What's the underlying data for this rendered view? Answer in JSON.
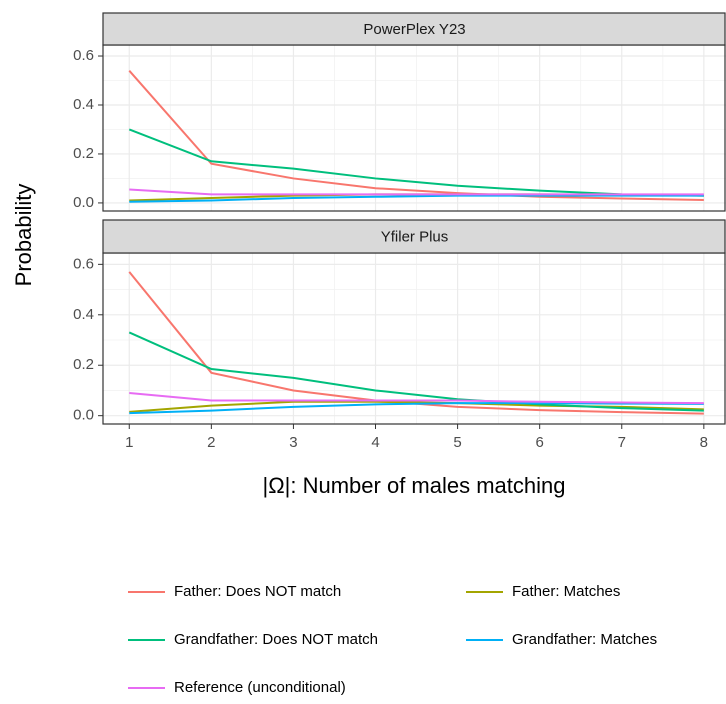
{
  "chart_data": [
    {
      "type": "line",
      "title": "PowerPlex Y23",
      "ylabel": "Probability",
      "x": [
        1,
        2,
        3,
        4,
        5,
        6,
        7,
        8
      ],
      "xlim": [
        0.68,
        8.27
      ],
      "xticks": [
        1,
        2,
        3,
        4,
        5,
        6,
        7,
        8
      ],
      "ylim": [
        -0.033,
        0.645
      ],
      "yticks": [
        {
          "value": 0,
          "label": "0.0"
        },
        {
          "value": 0.2,
          "label": "0.2"
        },
        {
          "value": 0.4,
          "label": "0.4"
        },
        {
          "value": 0.6,
          "label": "0.6"
        }
      ],
      "grid": true,
      "series": [
        {
          "name": "Father: Does NOT match",
          "color": "#F8766D",
          "values": [
            0.54,
            0.16,
            0.1,
            0.06,
            0.04,
            0.025,
            0.018,
            0.012
          ]
        },
        {
          "name": "Father: Matches",
          "color": "#A3A500",
          "values": [
            0.01,
            0.02,
            0.03,
            0.035,
            0.035,
            0.035,
            0.033,
            0.03
          ]
        },
        {
          "name": "Grandfather: Does NOT match",
          "color": "#00BF7D",
          "values": [
            0.3,
            0.17,
            0.14,
            0.1,
            0.07,
            0.05,
            0.035,
            0.03
          ]
        },
        {
          "name": "Grandfather: Matches",
          "color": "#00B0F6",
          "values": [
            0.005,
            0.01,
            0.02,
            0.025,
            0.03,
            0.03,
            0.03,
            0.03
          ]
        },
        {
          "name": "Reference (unconditional)",
          "color": "#E76BF3",
          "values": [
            0.055,
            0.035,
            0.035,
            0.035,
            0.035,
            0.035,
            0.035,
            0.035
          ]
        }
      ]
    },
    {
      "type": "line",
      "title": "Yfiler Plus",
      "xlabel": "|Ω|: Number of males matching",
      "x": [
        1,
        2,
        3,
        4,
        5,
        6,
        7,
        8
      ],
      "xlim": [
        0.68,
        8.27
      ],
      "xticks": [
        1,
        2,
        3,
        4,
        5,
        6,
        7,
        8
      ],
      "ylim": [
        -0.033,
        0.645
      ],
      "yticks": [
        {
          "value": 0,
          "label": "0.0"
        },
        {
          "value": 0.2,
          "label": "0.2"
        },
        {
          "value": 0.4,
          "label": "0.4"
        },
        {
          "value": 0.6,
          "label": "0.6"
        }
      ],
      "grid": true,
      "series": [
        {
          "name": "Father: Does NOT match",
          "color": "#F8766D",
          "values": [
            0.57,
            0.17,
            0.1,
            0.06,
            0.035,
            0.022,
            0.014,
            0.008
          ]
        },
        {
          "name": "Father: Matches",
          "color": "#A3A500",
          "values": [
            0.015,
            0.04,
            0.055,
            0.055,
            0.05,
            0.04,
            0.035,
            0.025
          ]
        },
        {
          "name": "Grandfather: Does NOT match",
          "color": "#00BF7D",
          "values": [
            0.33,
            0.185,
            0.15,
            0.1,
            0.065,
            0.045,
            0.03,
            0.02
          ]
        },
        {
          "name": "Grandfather: Matches",
          "color": "#00B0F6",
          "values": [
            0.01,
            0.02,
            0.035,
            0.045,
            0.05,
            0.05,
            0.048,
            0.047
          ]
        },
        {
          "name": "Reference (unconditional)",
          "color": "#E76BF3",
          "values": [
            0.09,
            0.06,
            0.06,
            0.06,
            0.06,
            0.055,
            0.052,
            0.05
          ]
        }
      ]
    }
  ]
}
